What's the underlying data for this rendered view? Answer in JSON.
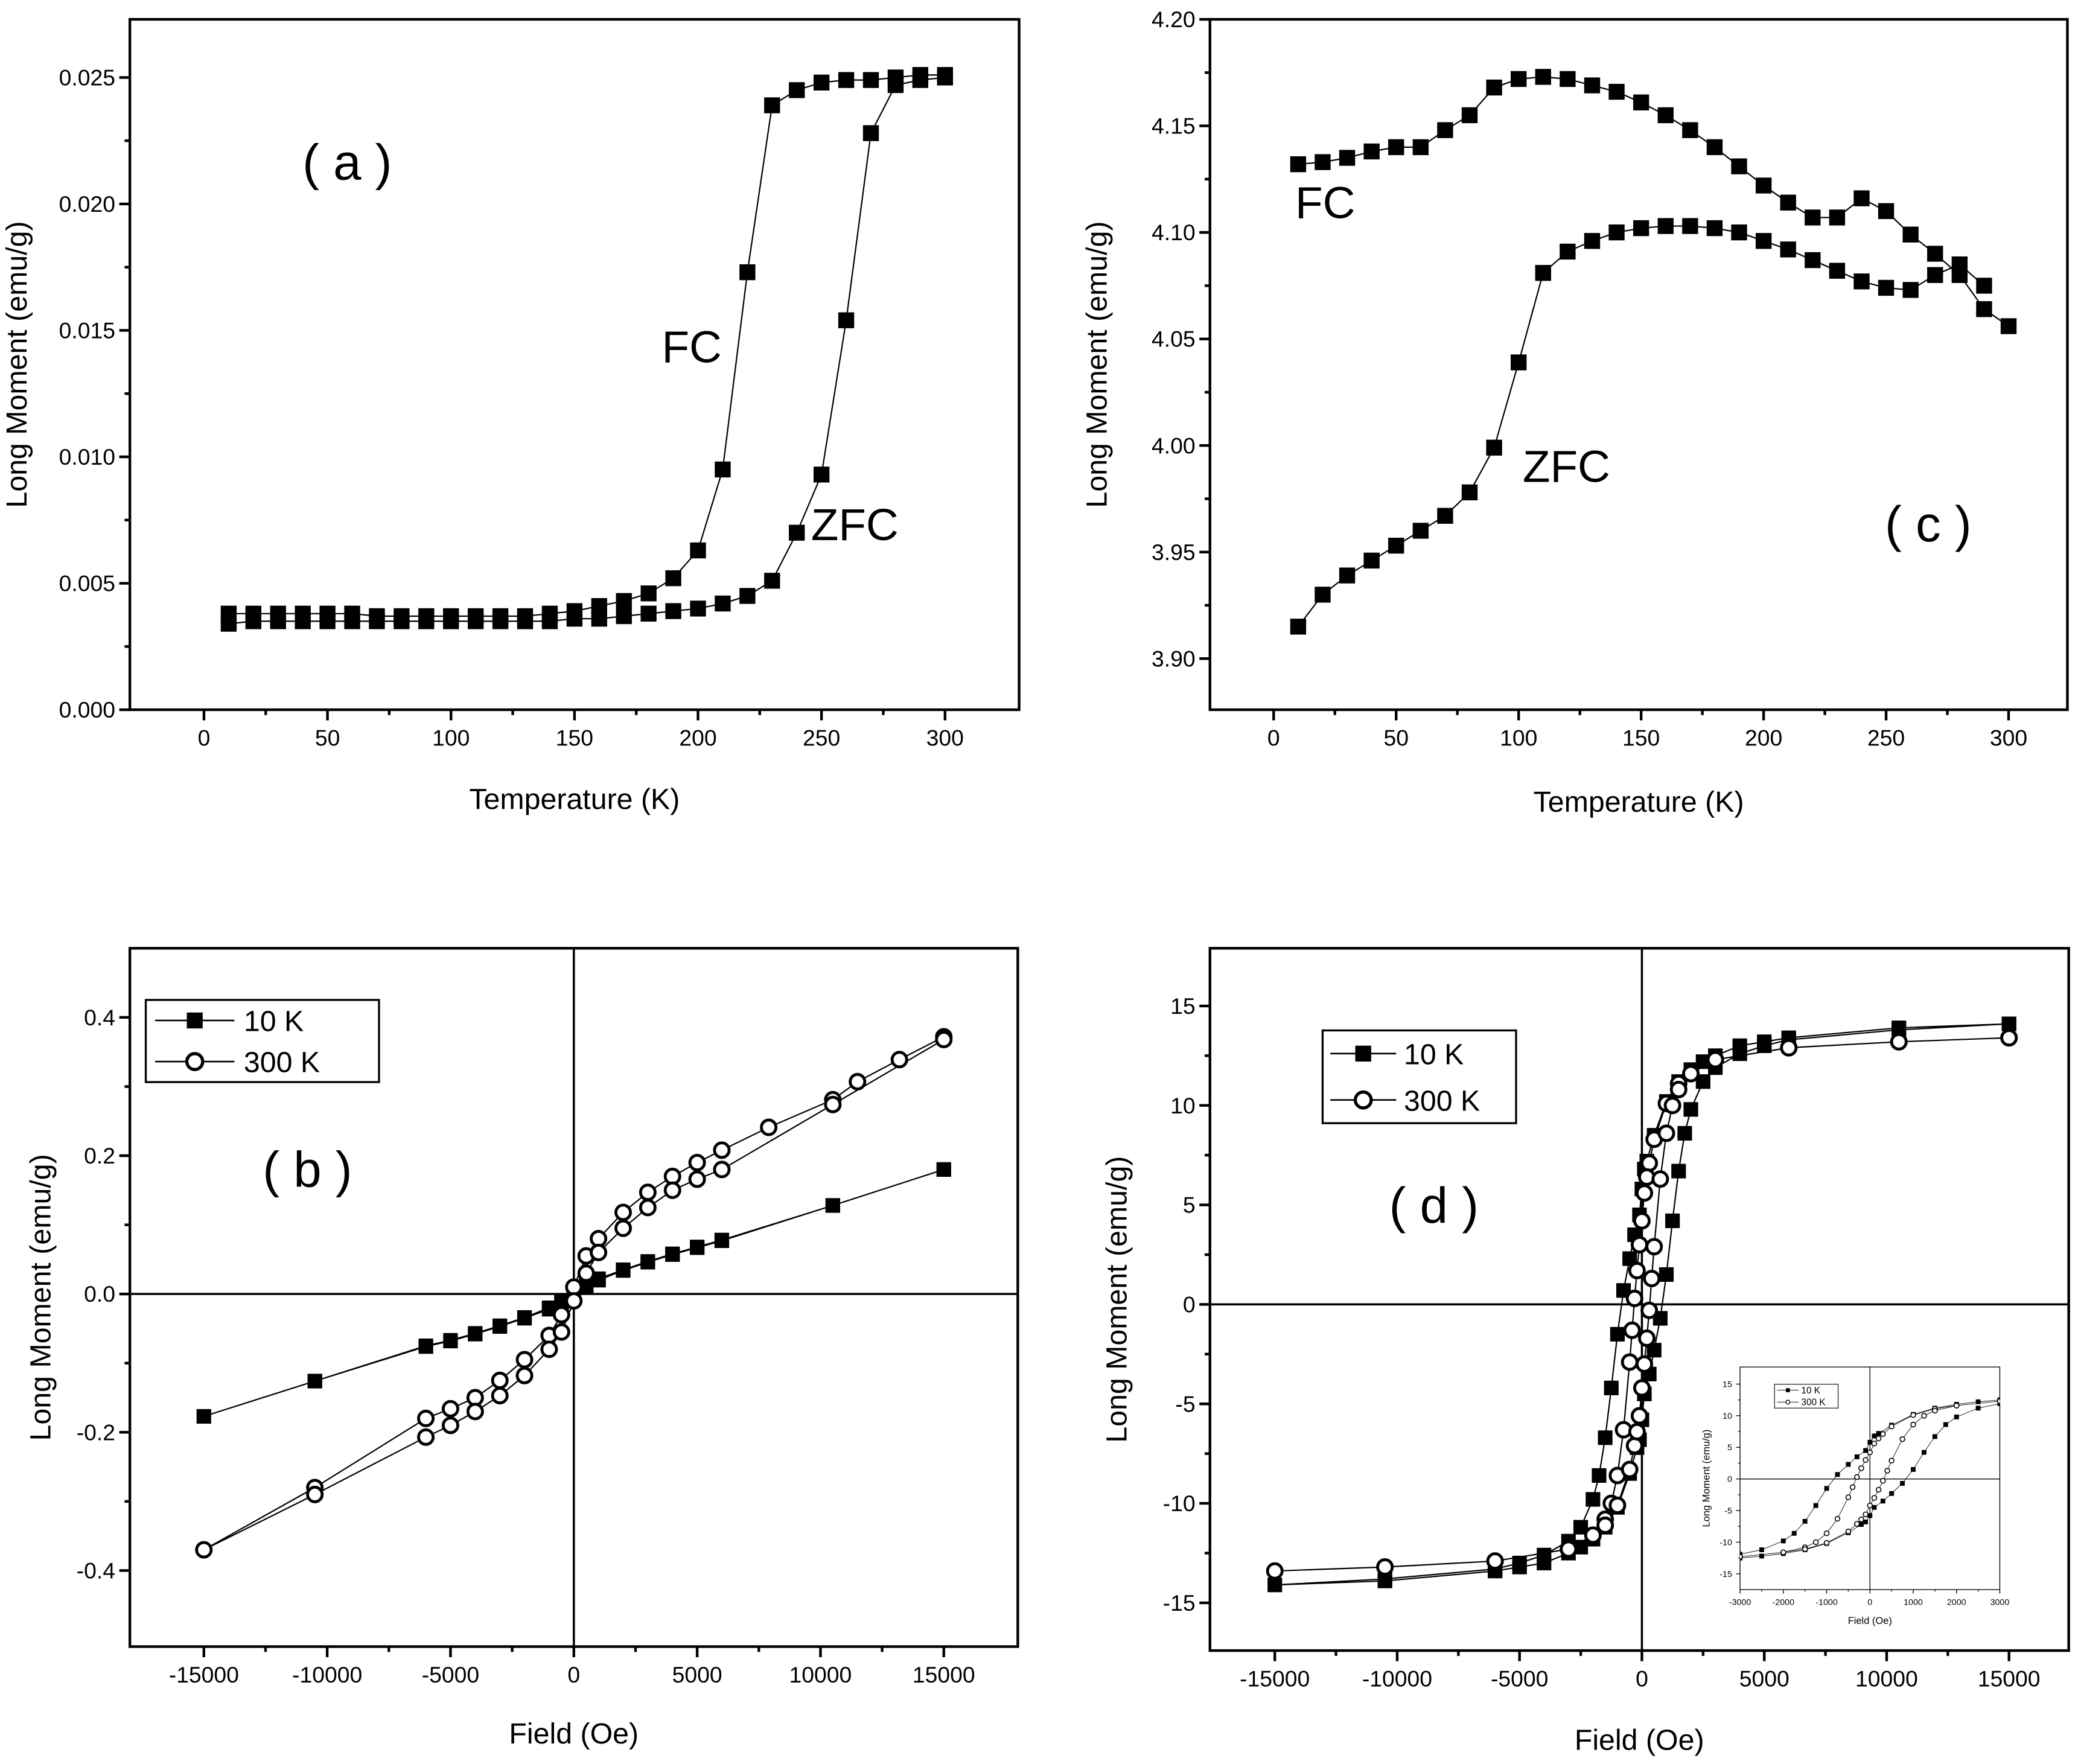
{
  "chart_data": [
    {
      "id": "a",
      "type": "scatter",
      "panel_label": "( a )",
      "xlabel": "Temperature (K)",
      "ylabel": "Long Moment (emu/g)",
      "xlim": [
        -30,
        330
      ],
      "ylim": [
        0,
        0.0273
      ],
      "xticks": [
        0,
        50,
        100,
        150,
        200,
        250,
        300
      ],
      "xtick_labels": [
        "0",
        "50",
        "100",
        "150",
        "200",
        "250",
        "300"
      ],
      "yticks": [
        0,
        0.005,
        0.01,
        0.015,
        0.02,
        0.025
      ],
      "ytick_labels": [
        "0.000",
        "0.005",
        "0.010",
        "0.015",
        "0.020",
        "0.025"
      ],
      "annotations": [
        "FC",
        "ZFC"
      ],
      "series": [
        {
          "name": "FC",
          "marker": "filled-square",
          "x": [
            10,
            20,
            30,
            40,
            50,
            60,
            70,
            80,
            90,
            100,
            110,
            120,
            130,
            140,
            150,
            160,
            170,
            180,
            190,
            200,
            210,
            220,
            230,
            240,
            250,
            260,
            270,
            280,
            290,
            300
          ],
          "y": [
            0.0038,
            0.0038,
            0.0038,
            0.0038,
            0.0038,
            0.0038,
            0.0037,
            0.0037,
            0.0037,
            0.0037,
            0.0037,
            0.0037,
            0.0037,
            0.0038,
            0.0039,
            0.0041,
            0.0043,
            0.0046,
            0.0052,
            0.0063,
            0.0095,
            0.0173,
            0.0239,
            0.0245,
            0.0248,
            0.0249,
            0.0249,
            0.025,
            0.0251,
            0.0251
          ]
        },
        {
          "name": "ZFC",
          "marker": "filled-square",
          "x": [
            10,
            20,
            30,
            40,
            50,
            60,
            70,
            80,
            90,
            100,
            110,
            120,
            130,
            140,
            150,
            160,
            170,
            180,
            190,
            200,
            210,
            220,
            230,
            240,
            250,
            260,
            270,
            280,
            290,
            300
          ],
          "y": [
            0.0034,
            0.0035,
            0.0035,
            0.0035,
            0.0035,
            0.0035,
            0.0035,
            0.0035,
            0.0035,
            0.0035,
            0.0035,
            0.0035,
            0.0035,
            0.0035,
            0.0036,
            0.0036,
            0.0037,
            0.0038,
            0.0039,
            0.004,
            0.0042,
            0.0045,
            0.0051,
            0.007,
            0.0093,
            0.0154,
            0.0228,
            0.0247,
            0.0249,
            0.025
          ]
        }
      ]
    },
    {
      "id": "c",
      "type": "scatter",
      "panel_label": "( c )",
      "xlabel": "Temperature (K)",
      "ylabel": "Long Moment (emu/g)",
      "xlim": [
        -26,
        324
      ],
      "ylim": [
        3.876,
        4.2
      ],
      "xticks": [
        0,
        50,
        100,
        150,
        200,
        250,
        300
      ],
      "xtick_labels": [
        "0",
        "50",
        "100",
        "150",
        "200",
        "250",
        "300"
      ],
      "yticks": [
        3.9,
        3.95,
        4.0,
        4.05,
        4.1,
        4.15,
        4.2
      ],
      "ytick_labels": [
        "3.90",
        "3.95",
        "4.00",
        "4.05",
        "4.10",
        "4.15",
        "4.20"
      ],
      "annotations": [
        "FC",
        "ZFC"
      ],
      "series": [
        {
          "name": "FC",
          "marker": "filled-square",
          "x": [
            10,
            20,
            30,
            40,
            50,
            60,
            70,
            80,
            90,
            100,
            110,
            120,
            130,
            140,
            150,
            160,
            170,
            180,
            190,
            200,
            210,
            220,
            230,
            240,
            250,
            260,
            270,
            280,
            290,
            300
          ],
          "y": [
            4.132,
            4.133,
            4.135,
            4.138,
            4.14,
            4.14,
            4.148,
            4.155,
            4.168,
            4.172,
            4.173,
            4.172,
            4.169,
            4.166,
            4.161,
            4.155,
            4.148,
            4.14,
            4.131,
            4.122,
            4.114,
            4.107,
            4.107,
            4.116,
            4.11,
            4.099,
            4.09,
            4.08,
            4.064,
            4.056
          ]
        },
        {
          "name": "ZFC",
          "marker": "filled-square",
          "x": [
            10,
            20,
            30,
            40,
            50,
            60,
            70,
            80,
            90,
            100,
            110,
            120,
            130,
            140,
            150,
            160,
            170,
            180,
            190,
            200,
            210,
            220,
            230,
            240,
            250,
            260,
            270,
            280,
            290
          ],
          "y": [
            3.915,
            3.93,
            3.939,
            3.946,
            3.953,
            3.96,
            3.967,
            3.978,
            3.999,
            4.039,
            4.081,
            4.091,
            4.096,
            4.1,
            4.102,
            4.103,
            4.103,
            4.102,
            4.1,
            4.096,
            4.092,
            4.087,
            4.082,
            4.077,
            4.074,
            4.073,
            4.08,
            4.085,
            4.075
          ]
        }
      ]
    },
    {
      "id": "b",
      "type": "line",
      "panel_label": "( b )",
      "xlabel": "Field (Oe)",
      "ylabel": "Long Moment (emu/g)",
      "xlim": [
        -18000,
        18000
      ],
      "ylim": [
        -0.51,
        0.5
      ],
      "xticks": [
        -15000,
        -10000,
        -5000,
        0,
        5000,
        10000,
        15000
      ],
      "xtick_labels": [
        "-15000",
        "-10000",
        "-5000",
        "0",
        "5000",
        "10000",
        "15000"
      ],
      "yticks": [
        -0.4,
        -0.2,
        0,
        0.2,
        0.4
      ],
      "ytick_labels": [
        "-0.4",
        "-0.2",
        "0.0",
        "0.2",
        "0.4"
      ],
      "legend": {
        "placement": "top-left",
        "entries": [
          "10 K",
          "300 K"
        ]
      },
      "series": [
        {
          "name": "10 K",
          "marker": "filled-square",
          "x": [
            15000,
            10500,
            6000,
            5000,
            4000,
            3000,
            2000,
            1000,
            500,
            0,
            -500,
            -1000,
            -2000,
            -3000,
            -4000,
            -5000,
            -6000,
            -10500,
            -15000,
            -10500,
            -6000,
            -5000,
            -4000,
            -3000,
            -2000,
            -1000,
            -500,
            0,
            500,
            1000,
            2000,
            3000,
            4000,
            5000,
            6000,
            10500,
            15000
          ],
          "y": [
            0.18,
            0.128,
            0.078,
            0.068,
            0.058,
            0.047,
            0.035,
            0.022,
            0.012,
            0.002,
            -0.01,
            -0.02,
            -0.034,
            -0.046,
            -0.057,
            -0.067,
            -0.075,
            -0.126,
            -0.177,
            -0.126,
            -0.076,
            -0.068,
            -0.058,
            -0.047,
            -0.035,
            -0.022,
            -0.012,
            -0.002,
            0.01,
            0.02,
            0.034,
            0.046,
            0.057,
            0.067,
            0.077,
            0.128,
            0.18
          ]
        },
        {
          "name": "300 K",
          "marker": "open-circle",
          "x": [
            15000,
            13200,
            11500,
            10500,
            7900,
            6000,
            5000,
            4000,
            3000,
            2000,
            1000,
            500,
            0,
            -500,
            -1000,
            -2000,
            -3000,
            -4000,
            -5000,
            -6000,
            -10500,
            -15000,
            -10500,
            -6000,
            -5000,
            -4000,
            -3000,
            -2000,
            -1000,
            -500,
            0,
            500,
            1000,
            2000,
            3000,
            4000,
            5000,
            6000,
            10500,
            15000
          ],
          "y": [
            0.372,
            0.339,
            0.307,
            0.281,
            0.241,
            0.208,
            0.19,
            0.17,
            0.147,
            0.118,
            0.08,
            0.055,
            0.01,
            -0.03,
            -0.06,
            -0.095,
            -0.125,
            -0.15,
            -0.166,
            -0.18,
            -0.28,
            -0.37,
            -0.29,
            -0.207,
            -0.19,
            -0.17,
            -0.147,
            -0.118,
            -0.08,
            -0.055,
            -0.01,
            0.03,
            0.06,
            0.095,
            0.125,
            0.15,
            0.166,
            0.18,
            0.274,
            0.368
          ]
        }
      ]
    },
    {
      "id": "d",
      "type": "line",
      "panel_label": "( d )",
      "xlabel": "Field (Oe)",
      "ylabel": "Long Moment (emu/g)",
      "xlim": [
        -17650,
        17440
      ],
      "ylim": [
        -17.4,
        17.9
      ],
      "xticks": [
        -15000,
        -10000,
        -5000,
        0,
        5000,
        10000,
        15000
      ],
      "xtick_labels": [
        "-15000",
        "-10000",
        "-5000",
        "0",
        "5000",
        "10000",
        "15000"
      ],
      "yticks": [
        -15,
        -10,
        -5,
        0,
        5,
        10,
        15
      ],
      "ytick_labels": [
        "-15",
        "-10",
        "-5",
        "0",
        "5",
        "10",
        "15"
      ],
      "legend": {
        "placement": "top-left",
        "entries": [
          "10 K",
          "300 K"
        ]
      },
      "series": [
        {
          "name": "10 K",
          "marker": "filled-square",
          "x": [
            15000,
            10500,
            6000,
            5000,
            4000,
            3000,
            2500,
            2000,
            1500,
            1000,
            500,
            200,
            100,
            0,
            -100,
            -300,
            -500,
            -750,
            -1000,
            -1250,
            -1500,
            -1750,
            -2000,
            -2500,
            -3000,
            -4000,
            -5000,
            -6000,
            -10500,
            -15000,
            -10500,
            -6000,
            -5000,
            -4000,
            -3000,
            -2500,
            -2000,
            -1500,
            -1000,
            -500,
            -200,
            -100,
            0,
            100,
            300,
            500,
            750,
            1000,
            1250,
            1500,
            1750,
            2000,
            2500,
            3000,
            4000,
            5000,
            6000,
            10500,
            15000
          ],
          "y": [
            14.1,
            13.9,
            13.4,
            13.2,
            13.0,
            12.5,
            12.2,
            11.8,
            11.2,
            10.2,
            8.5,
            7.2,
            6.8,
            5.8,
            4.5,
            3.5,
            2.3,
            0.7,
            -1.5,
            -4.2,
            -6.7,
            -8.6,
            -9.8,
            -11.2,
            -11.9,
            -12.6,
            -13.0,
            -13.3,
            -13.8,
            -14.1,
            -13.9,
            -13.4,
            -13.2,
            -13.0,
            -12.5,
            -12.2,
            -11.8,
            -11.2,
            -10.2,
            -8.5,
            -7.2,
            -6.8,
            -5.8,
            -4.5,
            -3.5,
            -2.3,
            -0.7,
            1.5,
            4.2,
            6.7,
            8.6,
            9.8,
            11.2,
            11.9,
            12.6,
            13.0,
            13.3,
            13.8,
            14.1
          ]
        },
        {
          "name": "300 K",
          "marker": "open-circle",
          "x": [
            15000,
            10500,
            6000,
            3000,
            2000,
            1500,
            1000,
            500,
            300,
            200,
            100,
            0,
            -100,
            -200,
            -300,
            -400,
            -500,
            -750,
            -1000,
            -1250,
            -1500,
            -2000,
            -3000,
            -6000,
            -10500,
            -15000,
            -10500,
            -6000,
            -3000,
            -2000,
            -1500,
            -1000,
            -500,
            -300,
            -200,
            -100,
            0,
            100,
            200,
            300,
            400,
            500,
            750,
            1000,
            1250,
            1500,
            2000,
            3000,
            6000,
            10500,
            15000
          ],
          "y": [
            13.4,
            13.2,
            12.9,
            12.3,
            11.6,
            11.1,
            10.1,
            8.3,
            7.1,
            6.4,
            5.6,
            4.2,
            3.0,
            1.7,
            0.3,
            -1.3,
            -2.9,
            -6.3,
            -8.6,
            -10.0,
            -10.8,
            -11.6,
            -12.3,
            -12.9,
            -13.2,
            -13.4,
            -13.2,
            -12.9,
            -12.3,
            -11.6,
            -11.1,
            -10.1,
            -8.3,
            -7.1,
            -6.4,
            -5.6,
            -4.2,
            -3.0,
            -1.7,
            -0.3,
            1.3,
            2.9,
            6.3,
            8.6,
            10.0,
            10.8,
            11.6,
            12.3,
            12.9,
            13.2,
            13.4
          ]
        }
      ],
      "inset": {
        "xlabel": "Field (Oe)",
        "ylabel": "Long Moment (emu/g)",
        "xlim": [
          -3000,
          3000
        ],
        "ylim": [
          -17.5,
          17.7
        ],
        "xticks": [
          -3000,
          -2000,
          -1000,
          0,
          1000,
          2000,
          3000
        ],
        "xtick_labels": [
          "-3000",
          "-2000",
          "-1000",
          "0",
          "1000",
          "2000",
          "3000"
        ],
        "yticks": [
          -15,
          -10,
          -5,
          0,
          5,
          10,
          15
        ],
        "ytick_labels": [
          "-15",
          "-10",
          "-5",
          "0",
          "5",
          "10",
          "15"
        ],
        "legend": {
          "placement": "top-left",
          "entries": [
            "10 K",
            "300 K"
          ]
        }
      }
    }
  ]
}
